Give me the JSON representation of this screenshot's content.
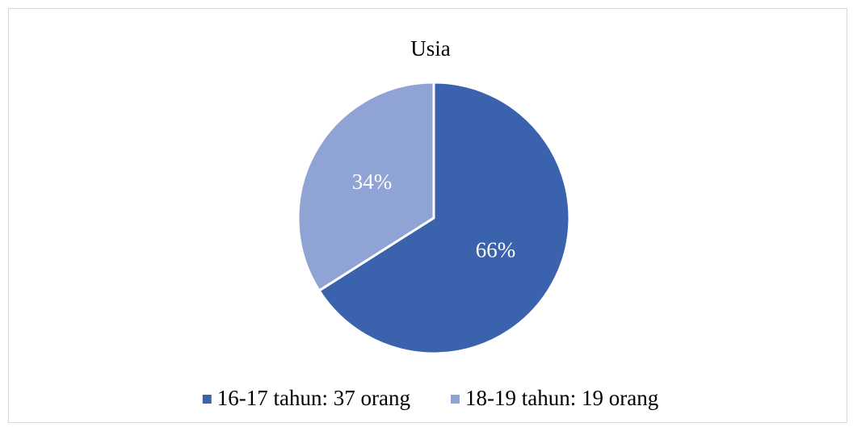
{
  "chart_data": {
    "type": "pie",
    "title": "Usia",
    "categories": [
      "16-17 tahun: 37 orang",
      "18-19 tahun: 19 orang"
    ],
    "values": [
      66,
      34
    ],
    "value_labels": [
      "66%",
      "34%"
    ],
    "colors": [
      "#3a62ad",
      "#8fa3d5"
    ],
    "legend": "bottom"
  }
}
